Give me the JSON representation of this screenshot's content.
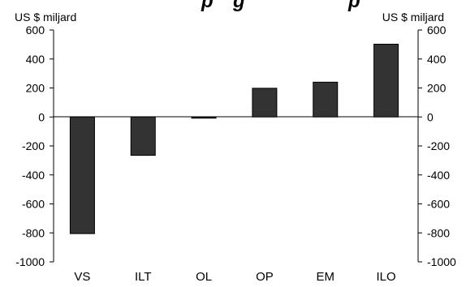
{
  "chart_data": {
    "type": "bar",
    "title": "",
    "title_fragments": [
      "p",
      "g",
      "p"
    ],
    "categories": [
      "VS",
      "ILT",
      "OL",
      "OP",
      "EM",
      "ILO"
    ],
    "values": [
      -805,
      -265,
      -8,
      198,
      240,
      502
    ],
    "ylabel_left": "US $ miljard",
    "ylabel_right": "US $ miljard",
    "ylim": [
      -1000,
      600
    ],
    "yticks": [
      600,
      400,
      200,
      0,
      -200,
      -400,
      -600,
      -800,
      -1000
    ],
    "ytick_labels": [
      "600",
      "400",
      "200",
      "0",
      "-200",
      "-400",
      "-600",
      "-800",
      "-1000"
    ],
    "grid": false,
    "legend": "none",
    "bar_color": "#333333"
  }
}
